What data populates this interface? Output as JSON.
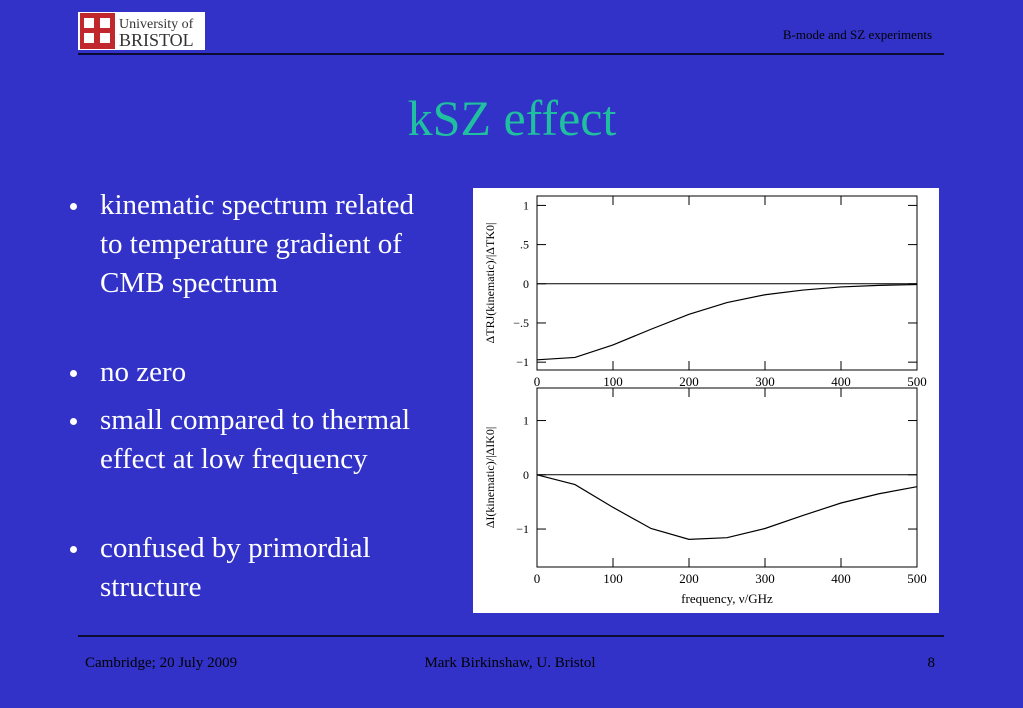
{
  "header": {
    "logo_line1": "University of",
    "logo_line2": "BRISTOL",
    "running_title": "B-mode and SZ experiments"
  },
  "title": "kSZ effect",
  "bullets": [
    "kinematic spectrum related to temperature gradient of CMB spectrum",
    "no zero",
    "small compared to thermal effect at low frequency",
    "confused by primordial structure"
  ],
  "footer": {
    "left": "Cambridge; 20 July 2009",
    "center": "Mark Birkinshaw, U. Bristol",
    "page": "8"
  },
  "chart_data": [
    {
      "type": "line",
      "y_label": "ΔTRJ(kinematic)/|ΔTK0|",
      "x": [
        0,
        50,
        100,
        150,
        200,
        250,
        300,
        350,
        400,
        450,
        500
      ],
      "series": [
        {
          "color": "#000000",
          "values": [
            -0.97,
            -0.94,
            -0.78,
            -0.58,
            -0.39,
            -0.24,
            -0.14,
            -0.08,
            -0.04,
            -0.02,
            -0.01
          ]
        }
      ],
      "xlim": [
        0,
        500
      ],
      "ylim": [
        -1.1,
        1.12
      ],
      "xticks": [
        0,
        100,
        200,
        300,
        400,
        500
      ],
      "yticks": [
        {
          "value": -1,
          "label": "−1"
        },
        {
          "value": -0.5,
          "label": "−.5"
        },
        0,
        {
          "value": 0.5,
          "label": ".5"
        },
        1
      ]
    },
    {
      "type": "line",
      "y_label": "ΔI(kinematic)/|ΔIK0|",
      "x_label": "frequency, ν/GHz",
      "x": [
        0,
        50,
        100,
        150,
        200,
        250,
        300,
        350,
        400,
        450,
        500
      ],
      "series": [
        {
          "color": "#000000",
          "values": [
            0,
            -0.18,
            -0.6,
            -0.99,
            -1.19,
            -1.16,
            -0.99,
            -0.75,
            -0.52,
            -0.35,
            -0.22
          ]
        }
      ],
      "xlim": [
        0,
        500
      ],
      "ylim": [
        -1.7,
        1.6
      ],
      "xticks": [
        0,
        100,
        200,
        300,
        400,
        500
      ],
      "yticks": [
        {
          "value": -1,
          "label": "−1"
        },
        0,
        1
      ]
    }
  ]
}
